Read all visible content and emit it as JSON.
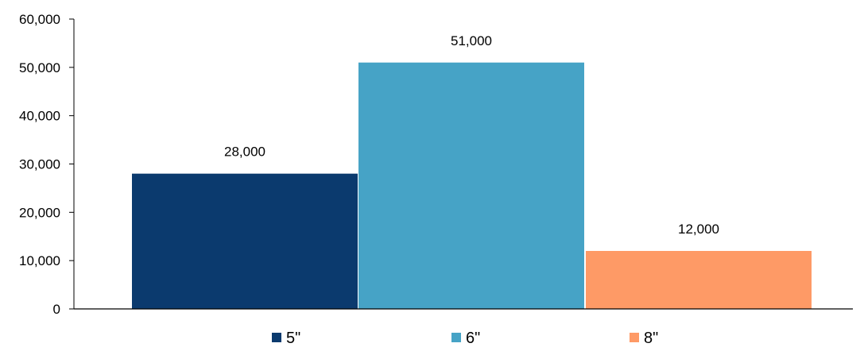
{
  "chart_data": {
    "type": "bar",
    "title": "",
    "xlabel": "",
    "ylabel": "",
    "ylim": [
      0,
      60000
    ],
    "yticks": [
      0,
      10000,
      20000,
      30000,
      40000,
      50000,
      60000
    ],
    "ytick_labels": [
      "0",
      "10,000",
      "20,000",
      "30,000",
      "40,000",
      "50,000",
      "60,000"
    ],
    "grid": false,
    "legend_position": "bottom",
    "series": [
      {
        "name": "5\"",
        "value": 28000,
        "data_label": "28,000",
        "color": "#0b3a6e"
      },
      {
        "name": "6\"",
        "value": 51000,
        "data_label": "51,000",
        "color": "#46a3c6"
      },
      {
        "name": "8\"",
        "value": 12000,
        "data_label": "12,000",
        "color": "#fe9a66"
      }
    ]
  }
}
